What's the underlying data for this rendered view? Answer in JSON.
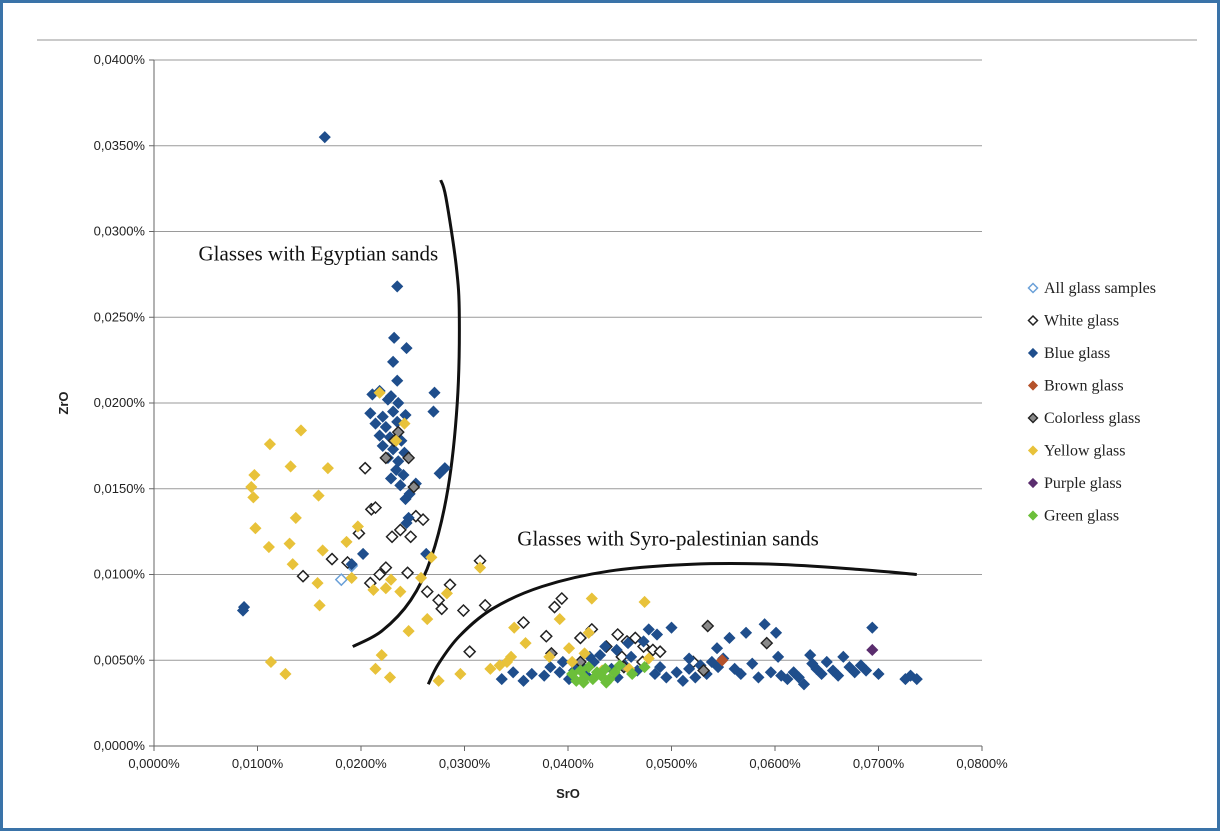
{
  "chart_data": {
    "type": "scatter",
    "title": "",
    "xlabel": "SrO",
    "ylabel": "ZrO",
    "xlim": [
      0,
      0.08
    ],
    "ylim": [
      0,
      0.04
    ],
    "grid": "horizontal",
    "legend_position": "right",
    "x_ticks": [
      "0,0000%",
      "0,0100%",
      "0,0200%",
      "0,0300%",
      "0,0400%",
      "0,0500%",
      "0,0600%",
      "0,0700%",
      "0,0800%"
    ],
    "y_ticks": [
      "0,0000%",
      "0,0050%",
      "0,0100%",
      "0,0150%",
      "0,0200%",
      "0,0250%",
      "0,0300%",
      "0,0350%",
      "0,0400%"
    ],
    "annotations": [
      {
        "text": "Glasses with Egyptian sands",
        "x": 0.0043,
        "y": 0.0283
      },
      {
        "text": "Glasses with Syro-palestinian sands",
        "x": 0.0351,
        "y": 0.0117
      }
    ],
    "boundary_curves": [
      [
        [
          0.0277,
          0.033
        ],
        [
          0.0282,
          0.032
        ],
        [
          0.0292,
          0.028
        ],
        [
          0.0295,
          0.025
        ],
        [
          0.0293,
          0.02
        ],
        [
          0.0284,
          0.015
        ],
        [
          0.0268,
          0.011
        ],
        [
          0.0248,
          0.0085
        ],
        [
          0.022,
          0.0067
        ],
        [
          0.0192,
          0.0058
        ]
      ],
      [
        [
          0.0265,
          0.0036
        ],
        [
          0.0275,
          0.0048
        ],
        [
          0.0295,
          0.0064
        ],
        [
          0.0327,
          0.008
        ],
        [
          0.0375,
          0.0093
        ],
        [
          0.044,
          0.0102
        ],
        [
          0.052,
          0.0106
        ],
        [
          0.06,
          0.0106
        ],
        [
          0.068,
          0.0103
        ],
        [
          0.0737,
          0.01
        ]
      ]
    ],
    "series": [
      {
        "name": "All glass samples",
        "color": "#6aa0d8",
        "marker": "diamond-open",
        "points": [
          [
            0.0181,
            0.0097
          ],
          [
            0.0191,
            0.0105
          ]
        ]
      },
      {
        "name": "White glass",
        "color": "#222222",
        "marker": "diamond-open",
        "points": [
          [
            0.0144,
            0.0099
          ],
          [
            0.0172,
            0.0109
          ],
          [
            0.0187,
            0.0107
          ],
          [
            0.0198,
            0.0124
          ],
          [
            0.0204,
            0.0162
          ],
          [
            0.021,
            0.0138
          ],
          [
            0.0214,
            0.0139
          ],
          [
            0.0209,
            0.0095
          ],
          [
            0.0218,
            0.01
          ],
          [
            0.0224,
            0.0104
          ],
          [
            0.023,
            0.0122
          ],
          [
            0.0238,
            0.0126
          ],
          [
            0.0245,
            0.0101
          ],
          [
            0.0248,
            0.0122
          ],
          [
            0.0253,
            0.0134
          ],
          [
            0.026,
            0.0132
          ],
          [
            0.0264,
            0.009
          ],
          [
            0.0275,
            0.0085
          ],
          [
            0.0278,
            0.008
          ],
          [
            0.0286,
            0.0094
          ],
          [
            0.0299,
            0.0079
          ],
          [
            0.0305,
            0.0055
          ],
          [
            0.0315,
            0.0108
          ],
          [
            0.032,
            0.0082
          ],
          [
            0.0357,
            0.0072
          ],
          [
            0.0379,
            0.0064
          ],
          [
            0.0387,
            0.0081
          ],
          [
            0.0394,
            0.0086
          ],
          [
            0.0412,
            0.0063
          ],
          [
            0.0423,
            0.0068
          ],
          [
            0.0437,
            0.0058
          ],
          [
            0.0448,
            0.0065
          ],
          [
            0.0457,
            0.0061
          ],
          [
            0.0465,
            0.0063
          ],
          [
            0.0473,
            0.0058
          ],
          [
            0.0482,
            0.0056
          ],
          [
            0.0489,
            0.0055
          ],
          [
            0.0521,
            0.0049
          ],
          [
            0.0452,
            0.0052
          ],
          [
            0.0472,
            0.0049
          ]
        ]
      },
      {
        "name": "Blue glass",
        "color": "#1f4e8c",
        "marker": "diamond",
        "points": [
          [
            0.0165,
            0.0355
          ],
          [
            0.0235,
            0.0268
          ],
          [
            0.0232,
            0.0238
          ],
          [
            0.0244,
            0.0232
          ],
          [
            0.0231,
            0.0224
          ],
          [
            0.0235,
            0.0213
          ],
          [
            0.0218,
            0.0207
          ],
          [
            0.0229,
            0.0204
          ],
          [
            0.0211,
            0.0205
          ],
          [
            0.0226,
            0.0202
          ],
          [
            0.0236,
            0.02
          ],
          [
            0.0209,
            0.0194
          ],
          [
            0.0221,
            0.0192
          ],
          [
            0.0231,
            0.0195
          ],
          [
            0.0243,
            0.0193
          ],
          [
            0.0214,
            0.0188
          ],
          [
            0.0224,
            0.0186
          ],
          [
            0.0235,
            0.0189
          ],
          [
            0.0218,
            0.0181
          ],
          [
            0.0228,
            0.018
          ],
          [
            0.0239,
            0.0178
          ],
          [
            0.0221,
            0.0175
          ],
          [
            0.0231,
            0.0173
          ],
          [
            0.0242,
            0.0171
          ],
          [
            0.0226,
            0.0168
          ],
          [
            0.0236,
            0.0166
          ],
          [
            0.0234,
            0.0161
          ],
          [
            0.0241,
            0.0158
          ],
          [
            0.0229,
            0.0156
          ],
          [
            0.0238,
            0.0152
          ],
          [
            0.0243,
            0.0144
          ],
          [
            0.0247,
            0.0147
          ],
          [
            0.0253,
            0.0153
          ],
          [
            0.0246,
            0.0133
          ],
          [
            0.0244,
            0.013
          ],
          [
            0.0271,
            0.0206
          ],
          [
            0.027,
            0.0195
          ],
          [
            0.0281,
            0.0162
          ],
          [
            0.0276,
            0.0159
          ],
          [
            0.0263,
            0.0112
          ],
          [
            0.0087,
            0.0081
          ],
          [
            0.0086,
            0.0079
          ],
          [
            0.0191,
            0.0106
          ],
          [
            0.0202,
            0.0112
          ],
          [
            0.0336,
            0.0039
          ],
          [
            0.0347,
            0.0043
          ],
          [
            0.0357,
            0.0038
          ],
          [
            0.0365,
            0.0042
          ],
          [
            0.0377,
            0.0041
          ],
          [
            0.0383,
            0.0046
          ],
          [
            0.0392,
            0.0043
          ],
          [
            0.0401,
            0.0039
          ],
          [
            0.0406,
            0.0044
          ],
          [
            0.0412,
            0.0047
          ],
          [
            0.0418,
            0.0041
          ],
          [
            0.0425,
            0.0049
          ],
          [
            0.0431,
            0.0053
          ],
          [
            0.0436,
            0.0058
          ],
          [
            0.0442,
            0.0045
          ],
          [
            0.0448,
            0.004
          ],
          [
            0.0455,
            0.0047
          ],
          [
            0.0461,
            0.0052
          ],
          [
            0.0467,
            0.0044
          ],
          [
            0.0473,
            0.0061
          ],
          [
            0.0478,
            0.0068
          ],
          [
            0.0484,
            0.0042
          ],
          [
            0.0489,
            0.0046
          ],
          [
            0.0495,
            0.004
          ],
          [
            0.05,
            0.0069
          ],
          [
            0.0505,
            0.0043
          ],
          [
            0.0511,
            0.0038
          ],
          [
            0.0517,
            0.0045
          ],
          [
            0.0523,
            0.004
          ],
          [
            0.0528,
            0.0047
          ],
          [
            0.0534,
            0.0042
          ],
          [
            0.0539,
            0.0049
          ],
          [
            0.0545,
            0.0046
          ],
          [
            0.055,
            0.0051
          ],
          [
            0.0556,
            0.0063
          ],
          [
            0.0561,
            0.0045
          ],
          [
            0.0567,
            0.0042
          ],
          [
            0.0572,
            0.0066
          ],
          [
            0.0578,
            0.0048
          ],
          [
            0.0584,
            0.004
          ],
          [
            0.059,
            0.0071
          ],
          [
            0.0596,
            0.0043
          ],
          [
            0.0601,
            0.0066
          ],
          [
            0.0606,
            0.0041
          ],
          [
            0.0612,
            0.0039
          ],
          [
            0.0618,
            0.0043
          ],
          [
            0.0623,
            0.004
          ],
          [
            0.0628,
            0.0036
          ],
          [
            0.0634,
            0.0053
          ],
          [
            0.064,
            0.0045
          ],
          [
            0.0645,
            0.0042
          ],
          [
            0.065,
            0.0049
          ],
          [
            0.0656,
            0.0044
          ],
          [
            0.0661,
            0.0041
          ],
          [
            0.0666,
            0.0052
          ],
          [
            0.0672,
            0.0046
          ],
          [
            0.0677,
            0.0043
          ],
          [
            0.0683,
            0.0047
          ],
          [
            0.0688,
            0.0044
          ],
          [
            0.0694,
            0.0069
          ],
          [
            0.07,
            0.0042
          ],
          [
            0.0726,
            0.0039
          ],
          [
            0.0731,
            0.0041
          ],
          [
            0.0737,
            0.0039
          ],
          [
            0.0395,
            0.0049
          ],
          [
            0.0421,
            0.0052
          ],
          [
            0.0447,
            0.0056
          ],
          [
            0.0458,
            0.006
          ],
          [
            0.0486,
            0.0065
          ],
          [
            0.0517,
            0.0051
          ],
          [
            0.0544,
            0.0057
          ],
          [
            0.0603,
            0.0052
          ],
          [
            0.0636,
            0.0048
          ]
        ]
      },
      {
        "name": "Brown glass",
        "color": "#b5522a",
        "marker": "diamond",
        "points": [
          [
            0.0549,
            0.005
          ]
        ]
      },
      {
        "name": "Colorless glass",
        "color": "#8a8a8a",
        "marker": "diamond-outlined",
        "points": [
          [
            0.0224,
            0.0168
          ],
          [
            0.0232,
            0.0178
          ],
          [
            0.0236,
            0.0183
          ],
          [
            0.0246,
            0.0168
          ],
          [
            0.0251,
            0.0151
          ],
          [
            0.0384,
            0.0054
          ],
          [
            0.0531,
            0.0044
          ],
          [
            0.0535,
            0.007
          ],
          [
            0.0592,
            0.006
          ],
          [
            0.0454,
            0.0046
          ],
          [
            0.0412,
            0.0049
          ]
        ]
      },
      {
        "name": "Yellow glass",
        "color": "#e8c23a",
        "marker": "diamond",
        "points": [
          [
            0.0094,
            0.0151
          ],
          [
            0.0096,
            0.0145
          ],
          [
            0.0097,
            0.0158
          ],
          [
            0.0098,
            0.0127
          ],
          [
            0.0111,
            0.0116
          ],
          [
            0.0112,
            0.0176
          ],
          [
            0.0113,
            0.0049
          ],
          [
            0.0127,
            0.0042
          ],
          [
            0.0131,
            0.0118
          ],
          [
            0.0132,
            0.0163
          ],
          [
            0.0134,
            0.0106
          ],
          [
            0.0137,
            0.0133
          ],
          [
            0.0142,
            0.0184
          ],
          [
            0.0158,
            0.0095
          ],
          [
            0.0159,
            0.0146
          ],
          [
            0.016,
            0.0082
          ],
          [
            0.0163,
            0.0114
          ],
          [
            0.0168,
            0.0162
          ],
          [
            0.0186,
            0.0119
          ],
          [
            0.0191,
            0.0098
          ],
          [
            0.0197,
            0.0128
          ],
          [
            0.0212,
            0.0091
          ],
          [
            0.0214,
            0.0045
          ],
          [
            0.0218,
            0.0206
          ],
          [
            0.022,
            0.0053
          ],
          [
            0.0224,
            0.0092
          ],
          [
            0.0228,
            0.004
          ],
          [
            0.0229,
            0.0097
          ],
          [
            0.0234,
            0.0178
          ],
          [
            0.0238,
            0.009
          ],
          [
            0.0242,
            0.0188
          ],
          [
            0.0246,
            0.0067
          ],
          [
            0.0258,
            0.0098
          ],
          [
            0.0264,
            0.0074
          ],
          [
            0.0268,
            0.011
          ],
          [
            0.0275,
            0.0038
          ],
          [
            0.0283,
            0.0089
          ],
          [
            0.0296,
            0.0042
          ],
          [
            0.0315,
            0.0104
          ],
          [
            0.0325,
            0.0045
          ],
          [
            0.0334,
            0.0047
          ],
          [
            0.0341,
            0.0049
          ],
          [
            0.0345,
            0.0052
          ],
          [
            0.0348,
            0.0069
          ],
          [
            0.0392,
            0.0074
          ],
          [
            0.0404,
            0.0049
          ],
          [
            0.0416,
            0.0054
          ],
          [
            0.042,
            0.0066
          ],
          [
            0.0423,
            0.0086
          ],
          [
            0.0433,
            0.0044
          ],
          [
            0.0459,
            0.0045
          ],
          [
            0.0474,
            0.0084
          ],
          [
            0.0478,
            0.0051
          ],
          [
            0.0382,
            0.0052
          ],
          [
            0.0359,
            0.006
          ],
          [
            0.0401,
            0.0057
          ]
        ]
      },
      {
        "name": "Purple glass",
        "color": "#5a2d6e",
        "marker": "diamond",
        "points": [
          [
            0.0694,
            0.0056
          ]
        ]
      },
      {
        "name": "Green glass",
        "color": "#6cbf3a",
        "marker": "diamond",
        "points": [
          [
            0.0404,
            0.0042
          ],
          [
            0.0408,
            0.0038
          ],
          [
            0.0412,
            0.0044
          ],
          [
            0.0416,
            0.004
          ],
          [
            0.042,
            0.0046
          ],
          [
            0.0424,
            0.0039
          ],
          [
            0.0428,
            0.0043
          ],
          [
            0.0432,
            0.0041
          ],
          [
            0.0436,
            0.0045
          ],
          [
            0.044,
            0.0039
          ],
          [
            0.0445,
            0.0043
          ],
          [
            0.045,
            0.0047
          ],
          [
            0.0462,
            0.0042
          ],
          [
            0.0474,
            0.0046
          ],
          [
            0.0415,
            0.0037
          ],
          [
            0.0437,
            0.0037
          ]
        ]
      }
    ]
  }
}
